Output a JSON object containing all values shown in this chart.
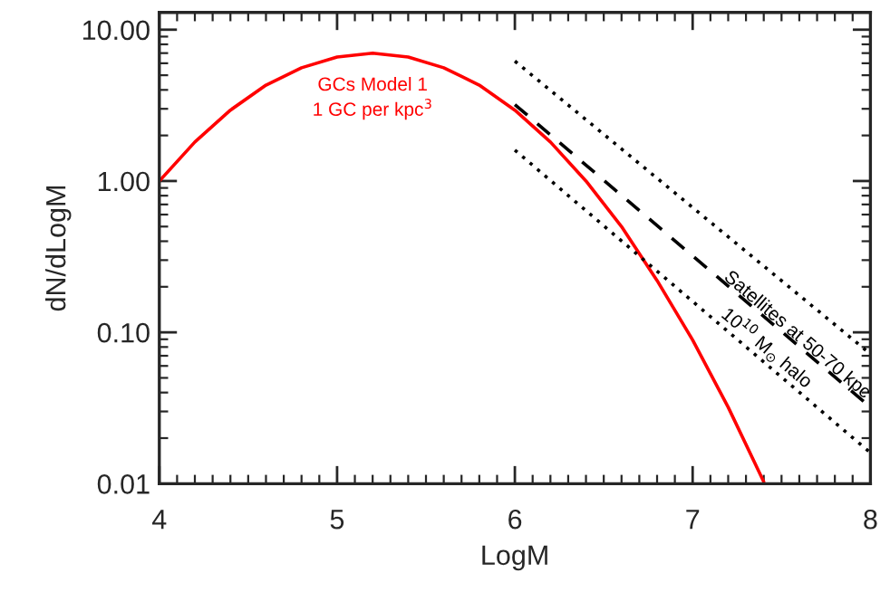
{
  "chart_data": {
    "type": "line",
    "xlabel": "LogM",
    "ylabel": "dN/dLogM",
    "log": "y",
    "grid": false,
    "legend": false,
    "xlim": [
      4,
      8
    ],
    "ylim": [
      0.01,
      13
    ],
    "xticks": [
      4,
      5,
      6,
      7,
      8
    ],
    "yticks": [
      {
        "value": 10,
        "label": "10.00"
      },
      {
        "value": 1,
        "label": "1.00"
      },
      {
        "value": 0.1,
        "label": "0.10"
      },
      {
        "value": 0.01,
        "label": "0.01"
      }
    ],
    "series": [
      {
        "color": "#ff0000",
        "line_style": "solid",
        "x": [
          4.0,
          4.2,
          4.4,
          4.6,
          4.8,
          5.0,
          5.2,
          5.4,
          5.6,
          5.8,
          6.0,
          6.2,
          6.4,
          6.6,
          6.8,
          7.0,
          7.2,
          7.4
        ],
        "values": [
          1.0,
          1.81,
          2.94,
          4.3,
          5.6,
          6.6,
          7.0,
          6.6,
          5.6,
          4.3,
          2.94,
          1.81,
          1.0,
          0.5,
          0.22,
          0.089,
          0.032,
          0.0103
        ]
      },
      {
        "color": "#000000",
        "line_style": "dotted",
        "x": [
          6,
          8
        ],
        "values": [
          6.2,
          0.072
        ]
      },
      {
        "color": "#000000",
        "line_style": "dashed",
        "x": [
          6,
          8
        ],
        "values": [
          3.2,
          0.032
        ]
      },
      {
        "color": "#000000",
        "line_style": "dotted",
        "x": [
          6,
          8
        ],
        "values": [
          1.6,
          0.016
        ]
      }
    ],
    "annotations": [
      "GCs Model 1",
      "1 GC per kpc$^{3}$",
      "Satellites at 50-70 kpc",
      "10$^{10}$ M$_{⊙}$ halo"
    ]
  }
}
